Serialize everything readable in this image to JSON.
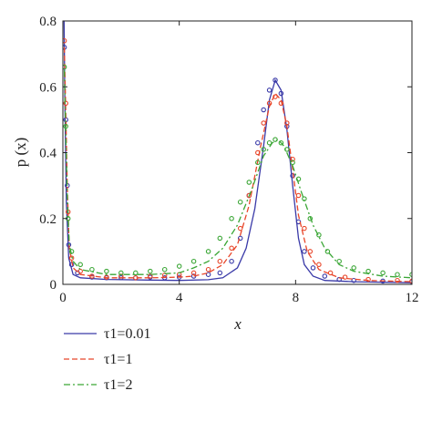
{
  "chart_data": {
    "type": "line",
    "title": "",
    "xlabel": "x",
    "ylabel": "p (x)",
    "xlim": [
      0,
      12
    ],
    "ylim": [
      0,
      0.8
    ],
    "x_ticks": [
      "0",
      "4",
      "8",
      "12"
    ],
    "y_ticks": [
      "0",
      "0.2",
      "0.4",
      "0.6",
      "0.8"
    ],
    "grid": false,
    "legend_position": "below plot, left",
    "series": [
      {
        "name": "τ1=0.01",
        "color": "#3a3aa8",
        "line_style": "solid",
        "line": [
          [
            0.04,
            0.8
          ],
          [
            0.07,
            0.55
          ],
          [
            0.12,
            0.25
          ],
          [
            0.2,
            0.08
          ],
          [
            0.35,
            0.03
          ],
          [
            0.6,
            0.02
          ],
          [
            1.5,
            0.015
          ],
          [
            3.0,
            0.013
          ],
          [
            4.0,
            0.012
          ],
          [
            5.0,
            0.014
          ],
          [
            5.5,
            0.02
          ],
          [
            6.0,
            0.05
          ],
          [
            6.3,
            0.11
          ],
          [
            6.6,
            0.23
          ],
          [
            6.9,
            0.42
          ],
          [
            7.1,
            0.56
          ],
          [
            7.3,
            0.62
          ],
          [
            7.5,
            0.59
          ],
          [
            7.7,
            0.47
          ],
          [
            7.9,
            0.3
          ],
          [
            8.1,
            0.14
          ],
          [
            8.3,
            0.06
          ],
          [
            8.6,
            0.025
          ],
          [
            9.0,
            0.012
          ],
          [
            10.0,
            0.008
          ],
          [
            12.0,
            0.005
          ]
        ],
        "markers": [
          [
            0.05,
            0.72
          ],
          [
            0.1,
            0.5
          ],
          [
            0.15,
            0.3
          ],
          [
            0.2,
            0.12
          ],
          [
            0.3,
            0.06
          ],
          [
            0.5,
            0.035
          ],
          [
            1.0,
            0.022
          ],
          [
            1.5,
            0.02
          ],
          [
            2.0,
            0.02
          ],
          [
            2.5,
            0.02
          ],
          [
            3.0,
            0.022
          ],
          [
            3.5,
            0.02
          ],
          [
            4.0,
            0.022
          ],
          [
            4.5,
            0.025
          ],
          [
            5.0,
            0.03
          ],
          [
            5.4,
            0.035
          ],
          [
            5.8,
            0.07
          ],
          [
            6.1,
            0.14
          ],
          [
            6.4,
            0.27
          ],
          [
            6.7,
            0.43
          ],
          [
            6.9,
            0.53
          ],
          [
            7.1,
            0.59
          ],
          [
            7.3,
            0.62
          ],
          [
            7.5,
            0.58
          ],
          [
            7.7,
            0.48
          ],
          [
            7.9,
            0.33
          ],
          [
            8.1,
            0.19
          ],
          [
            8.3,
            0.1
          ],
          [
            8.6,
            0.05
          ],
          [
            9.0,
            0.025
          ],
          [
            9.5,
            0.015
          ],
          [
            10.0,
            0.012
          ],
          [
            11.0,
            0.01
          ],
          [
            12.0,
            0.008
          ]
        ]
      },
      {
        "name": "τ1=1",
        "color": "#e8462a",
        "line_style": "dashed",
        "line": [
          [
            0.05,
            0.72
          ],
          [
            0.1,
            0.52
          ],
          [
            0.15,
            0.3
          ],
          [
            0.22,
            0.11
          ],
          [
            0.35,
            0.05
          ],
          [
            0.6,
            0.03
          ],
          [
            1.5,
            0.02
          ],
          [
            3.0,
            0.02
          ],
          [
            4.0,
            0.022
          ],
          [
            4.5,
            0.025
          ],
          [
            5.0,
            0.035
          ],
          [
            5.5,
            0.06
          ],
          [
            6.0,
            0.12
          ],
          [
            6.4,
            0.24
          ],
          [
            6.8,
            0.42
          ],
          [
            7.1,
            0.54
          ],
          [
            7.3,
            0.58
          ],
          [
            7.5,
            0.56
          ],
          [
            7.7,
            0.48
          ],
          [
            7.9,
            0.35
          ],
          [
            8.1,
            0.21
          ],
          [
            8.4,
            0.1
          ],
          [
            8.8,
            0.045
          ],
          [
            9.5,
            0.02
          ],
          [
            10.5,
            0.012
          ],
          [
            12.0,
            0.008
          ]
        ],
        "markers": [
          [
            0.05,
            0.74
          ],
          [
            0.1,
            0.55
          ],
          [
            0.18,
            0.22
          ],
          [
            0.3,
            0.08
          ],
          [
            0.6,
            0.04
          ],
          [
            1.0,
            0.025
          ],
          [
            1.5,
            0.022
          ],
          [
            2.0,
            0.025
          ],
          [
            2.5,
            0.02
          ],
          [
            3.0,
            0.025
          ],
          [
            3.5,
            0.028
          ],
          [
            4.0,
            0.03
          ],
          [
            4.5,
            0.035
          ],
          [
            5.0,
            0.045
          ],
          [
            5.4,
            0.07
          ],
          [
            5.8,
            0.11
          ],
          [
            6.1,
            0.17
          ],
          [
            6.4,
            0.27
          ],
          [
            6.7,
            0.4
          ],
          [
            6.9,
            0.49
          ],
          [
            7.1,
            0.55
          ],
          [
            7.3,
            0.57
          ],
          [
            7.5,
            0.55
          ],
          [
            7.7,
            0.49
          ],
          [
            7.9,
            0.38
          ],
          [
            8.1,
            0.27
          ],
          [
            8.3,
            0.17
          ],
          [
            8.5,
            0.1
          ],
          [
            8.8,
            0.06
          ],
          [
            9.2,
            0.035
          ],
          [
            9.7,
            0.022
          ],
          [
            10.5,
            0.015
          ],
          [
            11.5,
            0.012
          ],
          [
            12.0,
            0.01
          ]
        ]
      },
      {
        "name": "τ1=2",
        "color": "#3aa635",
        "line_style": "dash-dot",
        "line": [
          [
            0.05,
            0.65
          ],
          [
            0.1,
            0.45
          ],
          [
            0.15,
            0.27
          ],
          [
            0.22,
            0.12
          ],
          [
            0.35,
            0.07
          ],
          [
            0.6,
            0.045
          ],
          [
            1.5,
            0.03
          ],
          [
            3.0,
            0.03
          ],
          [
            4.0,
            0.035
          ],
          [
            4.5,
            0.05
          ],
          [
            5.0,
            0.07
          ],
          [
            5.5,
            0.11
          ],
          [
            6.0,
            0.18
          ],
          [
            6.5,
            0.29
          ],
          [
            6.9,
            0.39
          ],
          [
            7.2,
            0.43
          ],
          [
            7.4,
            0.44
          ],
          [
            7.6,
            0.42
          ],
          [
            7.9,
            0.36
          ],
          [
            8.2,
            0.28
          ],
          [
            8.6,
            0.18
          ],
          [
            9.0,
            0.11
          ],
          [
            9.5,
            0.06
          ],
          [
            10.0,
            0.04
          ],
          [
            11.0,
            0.025
          ],
          [
            12.0,
            0.02
          ]
        ],
        "markers": [
          [
            0.05,
            0.66
          ],
          [
            0.1,
            0.48
          ],
          [
            0.18,
            0.2
          ],
          [
            0.3,
            0.1
          ],
          [
            0.6,
            0.06
          ],
          [
            1.0,
            0.045
          ],
          [
            1.5,
            0.04
          ],
          [
            2.0,
            0.035
          ],
          [
            2.5,
            0.035
          ],
          [
            3.0,
            0.04
          ],
          [
            3.5,
            0.045
          ],
          [
            4.0,
            0.055
          ],
          [
            4.5,
            0.07
          ],
          [
            5.0,
            0.1
          ],
          [
            5.4,
            0.14
          ],
          [
            5.8,
            0.2
          ],
          [
            6.1,
            0.25
          ],
          [
            6.4,
            0.31
          ],
          [
            6.7,
            0.37
          ],
          [
            6.9,
            0.41
          ],
          [
            7.1,
            0.43
          ],
          [
            7.3,
            0.44
          ],
          [
            7.5,
            0.43
          ],
          [
            7.7,
            0.41
          ],
          [
            7.9,
            0.37
          ],
          [
            8.1,
            0.32
          ],
          [
            8.3,
            0.26
          ],
          [
            8.5,
            0.2
          ],
          [
            8.8,
            0.15
          ],
          [
            9.1,
            0.1
          ],
          [
            9.5,
            0.07
          ],
          [
            10.0,
            0.05
          ],
          [
            10.5,
            0.04
          ],
          [
            11.0,
            0.035
          ],
          [
            11.5,
            0.03
          ],
          [
            12.0,
            0.03
          ]
        ]
      }
    ]
  }
}
